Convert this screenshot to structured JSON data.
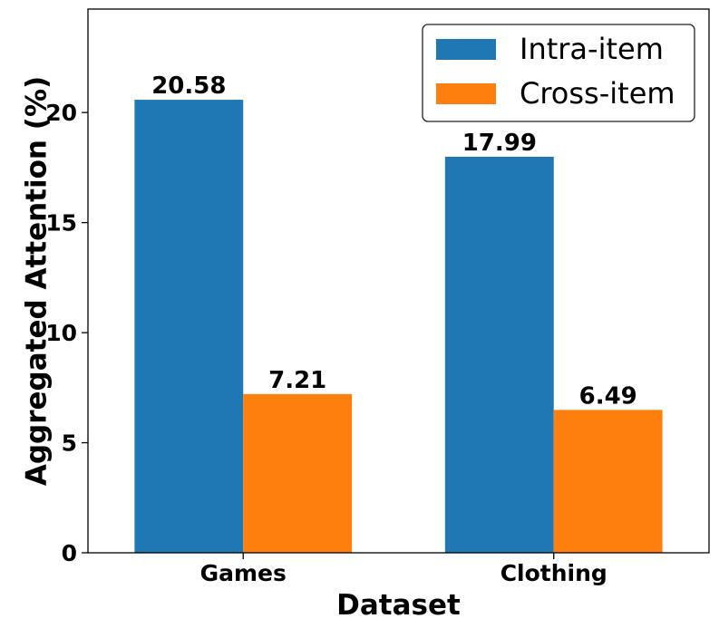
{
  "chart_data": {
    "type": "bar",
    "categories": [
      "Games",
      "Clothing"
    ],
    "series": [
      {
        "name": "Intra-item",
        "values": [
          20.58,
          17.99
        ],
        "color": "#1f77b4"
      },
      {
        "name": "Cross-item",
        "values": [
          7.21,
          6.49
        ],
        "color": "#ff7f0e"
      }
    ],
    "data_labels": [
      [
        "20.58",
        "17.99"
      ],
      [
        "7.21",
        "6.49"
      ]
    ],
    "xlabel": "Dataset",
    "ylabel": "Aggregated Attention (%)",
    "ylim": [
      0,
      24.7
    ],
    "yticks": [
      0,
      5,
      10,
      15,
      20
    ],
    "ytick_labels": [
      "0",
      "5",
      "10",
      "15",
      "20"
    ],
    "grid": false,
    "legend_position": "top-right"
  }
}
